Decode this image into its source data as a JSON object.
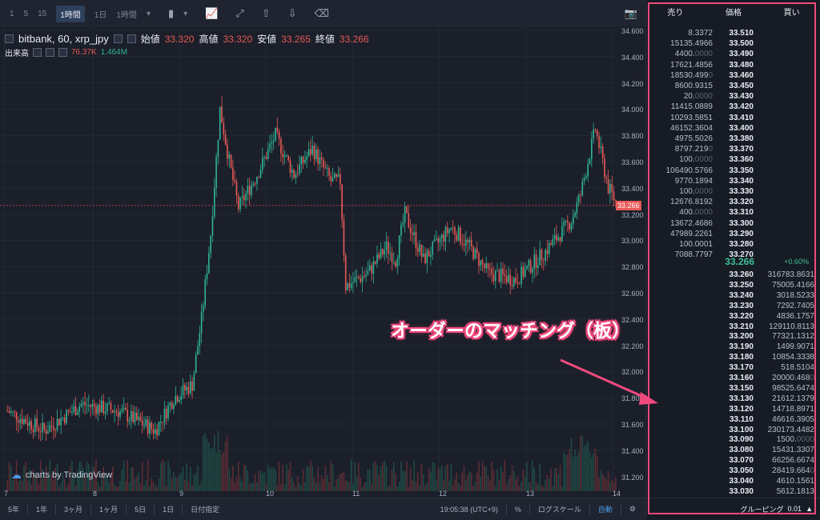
{
  "toolbar": {
    "intervals": [
      "1",
      "5",
      "15",
      "1時間",
      "1日",
      "1時間"
    ],
    "active_index": 3
  },
  "header": {
    "symbol": "bitbank, 60, xrp_jpy",
    "open_label": "始値",
    "open": "33.320",
    "high_label": "高値",
    "high": "33.320",
    "low_label": "安値",
    "low": "33.265",
    "close_label": "終値",
    "close": "33.266"
  },
  "volume": {
    "label": "出来高",
    "v1": "76.37K",
    "v2": "1.464M"
  },
  "price_axis": [
    "34.600",
    "34.400",
    "34.200",
    "34.000",
    "33.800",
    "33.600",
    "33.400",
    "33.200",
    "33.000",
    "32.800",
    "32.600",
    "32.400",
    "32.200",
    "32.000",
    "31.800",
    "31.600",
    "31.400",
    "31.200"
  ],
  "current_price_tag": "33.266",
  "date_axis": [
    "7",
    "8",
    "9",
    "10",
    "11",
    "12",
    "13",
    "14"
  ],
  "watermark": "charts by TradingView",
  "bottombar": {
    "ranges": [
      "5年",
      "1年",
      "3ヶ月",
      "1ヶ月",
      "5日",
      "1日"
    ],
    "date_select": "日付指定",
    "time": "19:05:38 (UTC+9)",
    "percent": "%",
    "log_scale": "ログスケール",
    "auto": "自動"
  },
  "orderbook": {
    "headers": {
      "sell": "売り",
      "price": "価格",
      "buy": "買い"
    },
    "asks": [
      {
        "size": "8.3372",
        "price": "33.510"
      },
      {
        "size": "15135.4966",
        "price": "33.500"
      },
      {
        "size": "4400.",
        "size_dim": "0000",
        "price": "33.490"
      },
      {
        "size": "17621.4856",
        "price": "33.480"
      },
      {
        "size": "18530.499",
        "size_dim": "0",
        "price": "33.460"
      },
      {
        "size": "8600.9315",
        "price": "33.450"
      },
      {
        "size": "20.",
        "size_dim": "0000",
        "price": "33.430"
      },
      {
        "size": "11415.0889",
        "price": "33.420"
      },
      {
        "size": "10293.5851",
        "price": "33.410"
      },
      {
        "size": "46152.3604",
        "price": "33.400"
      },
      {
        "size": "4975.5026",
        "price": "33.380"
      },
      {
        "size": "8797.219",
        "size_dim": "0",
        "price": "33.370"
      },
      {
        "size": "100.",
        "size_dim": "0000",
        "price": "33.360"
      },
      {
        "size": "106490.5766",
        "price": "33.350"
      },
      {
        "size": "9770.1894",
        "price": "33.340"
      },
      {
        "size": "100.",
        "size_dim": "0000",
        "price": "33.330"
      },
      {
        "size": "12676.8192",
        "price": "33.320"
      },
      {
        "size": "400.",
        "size_dim": "0000",
        "price": "33.310"
      },
      {
        "size": "13672.4686",
        "price": "33.300"
      },
      {
        "size": "47989.2261",
        "price": "33.290"
      },
      {
        "size": "100.0001",
        "price": "33.280"
      },
      {
        "size": "7088.7797",
        "price": "33.270"
      }
    ],
    "mid_price": "33.266",
    "mid_change": "+0.60%",
    "bids": [
      {
        "price": "33.260",
        "size": "316783.8631"
      },
      {
        "price": "33.250",
        "size": "75005.4166"
      },
      {
        "price": "33.240",
        "size": "3018.5233"
      },
      {
        "price": "33.230",
        "size": "7292.7405"
      },
      {
        "price": "33.220",
        "size": "4836.1757"
      },
      {
        "price": "33.210",
        "size": "129110.8113"
      },
      {
        "price": "33.200",
        "size": "77321.1312"
      },
      {
        "price": "33.190",
        "size": "1499.9071"
      },
      {
        "price": "33.180",
        "size": "10854.3338"
      },
      {
        "price": "33.170",
        "size": "518.5104"
      },
      {
        "price": "33.160",
        "size": "20000.468",
        "size_dim": "0"
      },
      {
        "price": "33.150",
        "size": "98525.6474"
      },
      {
        "price": "33.130",
        "size": "21612.1379"
      },
      {
        "price": "33.120",
        "size": "14718.8971"
      },
      {
        "price": "33.110",
        "size": "46616.3905"
      },
      {
        "price": "33.100",
        "size": "230173.4482"
      },
      {
        "price": "33.090",
        "size": "1500.",
        "size_dim": "0000"
      },
      {
        "price": "33.080",
        "size": "15431.3307"
      },
      {
        "price": "33.070",
        "size": "66256.6674"
      },
      {
        "price": "33.050",
        "size": "28419.664",
        "size_dim": "0"
      },
      {
        "price": "33.040",
        "size": "4610.1561"
      },
      {
        "price": "33.030",
        "size": "5612.1813"
      }
    ],
    "grouping_label": "グルーピング",
    "grouping_value": "0.01"
  },
  "annotation": "オーダーのマッチング（板）",
  "colors": {
    "up": "#2fb395",
    "down": "#e65a56",
    "highlight": "#f04a7d"
  }
}
